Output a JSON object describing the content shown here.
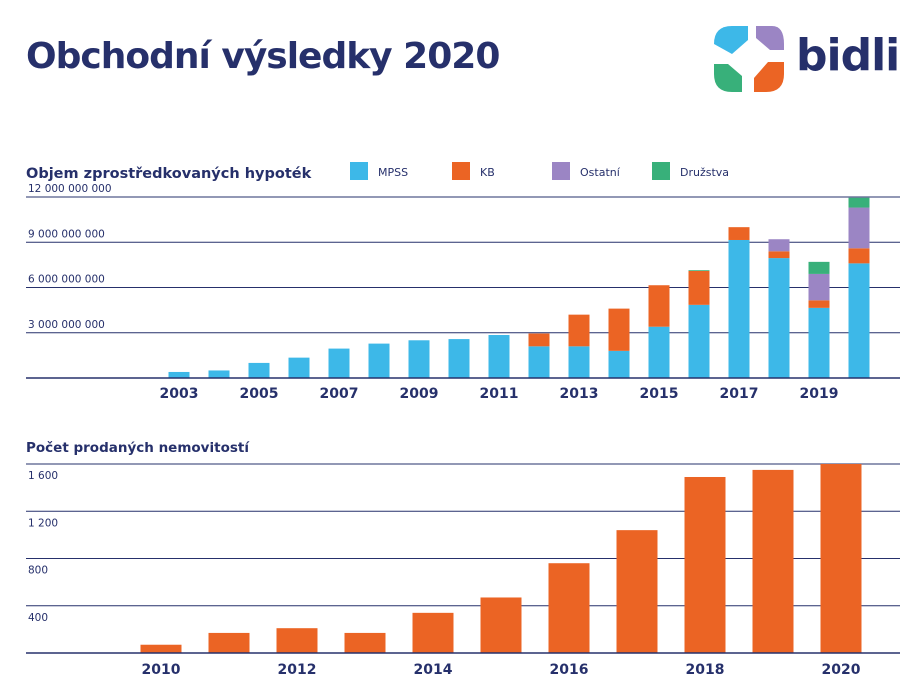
{
  "page": {
    "title": "Obchodní výsledky 2020"
  },
  "logo": {
    "text": "bidli",
    "colors": [
      "#3db8e8",
      "#9b85c4",
      "#38b07a",
      "#eb6424"
    ]
  },
  "colors": {
    "navy": "#26306b",
    "MPSS": "#3db8e8",
    "KB": "#eb6424",
    "Ostatní": "#9b85c4",
    "Družstva": "#38b07a"
  },
  "chart_data": [
    {
      "type": "bar",
      "stacked": true,
      "title": "Objem zprostředkovaných hypoték",
      "xlabel": "",
      "ylabel": "",
      "categories": [
        "2003",
        "2004",
        "2005",
        "2006",
        "2007",
        "2008",
        "2009",
        "2010",
        "2011",
        "2012",
        "2013",
        "2014",
        "2015",
        "2016",
        "2017",
        "2018",
        "2019",
        "2020"
      ],
      "x_tick_labels": [
        "2003",
        "2005",
        "2007",
        "2009",
        "2011",
        "2013",
        "2015",
        "2017",
        "2019"
      ],
      "y_ticks": [
        3000000000,
        6000000000,
        9000000000,
        12000000000
      ],
      "y_tick_labels": [
        "3 000 000 000",
        "6 000 000 000",
        "9 000 000 000",
        "12 000 000 000"
      ],
      "ylim": [
        0,
        12000000000
      ],
      "grid": true,
      "legend": "top",
      "series": [
        {
          "name": "MPSS",
          "color": "#3db8e8",
          "values": [
            400000000,
            500000000,
            1000000000,
            1350000000,
            1950000000,
            2280000000,
            2500000000,
            2580000000,
            2850000000,
            2100000000,
            2100000000,
            1800000000,
            3400000000,
            4850000000,
            9150000000,
            7950000000,
            4650000000,
            7600000000
          ]
        },
        {
          "name": "KB",
          "color": "#eb6424",
          "values": [
            0,
            0,
            0,
            0,
            0,
            0,
            0,
            0,
            0,
            850000000,
            2100000000,
            2800000000,
            2750000000,
            2250000000,
            850000000,
            450000000,
            500000000,
            1000000000
          ]
        },
        {
          "name": "Ostatní",
          "color": "#9b85c4",
          "values": [
            0,
            0,
            0,
            0,
            0,
            0,
            0,
            0,
            0,
            0,
            0,
            0,
            0,
            0,
            0,
            800000000,
            1750000000,
            2700000000
          ]
        },
        {
          "name": "Družstva",
          "color": "#38b07a",
          "values": [
            0,
            0,
            0,
            0,
            0,
            0,
            0,
            0,
            0,
            0,
            0,
            0,
            0,
            50000000,
            0,
            0,
            800000000,
            650000000
          ]
        }
      ]
    },
    {
      "type": "bar",
      "title": "Počet prodaných nemovitostí",
      "xlabel": "",
      "ylabel": "",
      "categories": [
        "2010",
        "2011",
        "2012",
        "2013",
        "2014",
        "2015",
        "2016",
        "2017",
        "2018",
        "2019",
        "2020"
      ],
      "x_tick_labels": [
        "2010",
        "2012",
        "2014",
        "2016",
        "2018",
        "2020"
      ],
      "values": [
        70,
        170,
        210,
        170,
        340,
        470,
        760,
        1040,
        1490,
        1550,
        1600
      ],
      "color": "#eb6424",
      "y_ticks": [
        400,
        800,
        1200,
        1600
      ],
      "y_tick_labels": [
        "400",
        "800",
        "1 200",
        "1 600"
      ],
      "ylim": [
        0,
        1600
      ],
      "grid": true
    }
  ]
}
